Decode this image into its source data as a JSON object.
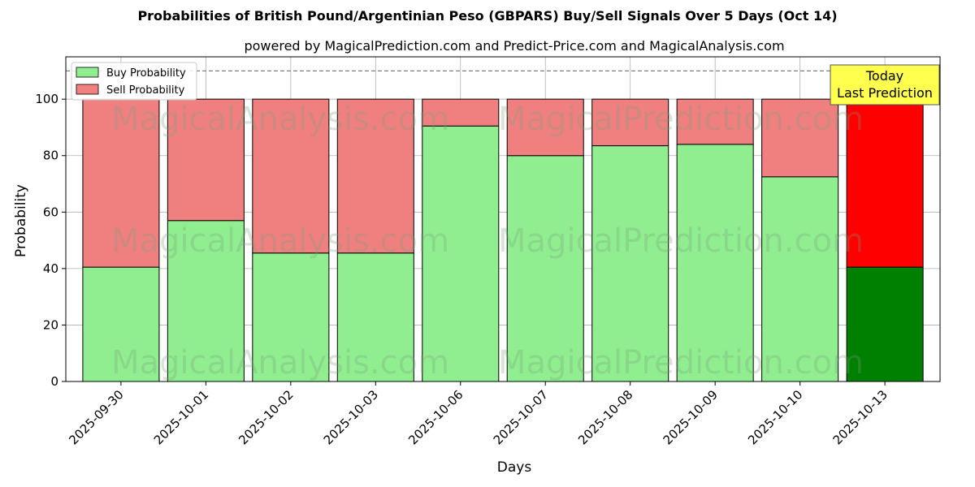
{
  "title": "Probabilities of British Pound/Argentinian Peso (GBPARS) Buy/Sell Signals Over 5 Days (Oct 14)",
  "subtitle": "powered by MagicalPrediction.com and Predict-Price.com and MagicalAnalysis.com",
  "watermarks": [
    "MagicalAnalysis.com",
    "MagicalPrediction.com"
  ],
  "annotation": {
    "line1": "Today",
    "line2": "Last Prediction"
  },
  "colors": {
    "buy": "#90ee90",
    "sell": "#f08080",
    "buy_today": "#008000",
    "sell_today": "#ff0000",
    "annotation_bg": "#ffff4d"
  },
  "chart_data": {
    "type": "bar",
    "stacked": true,
    "xlabel": "Days",
    "ylabel": "Probability",
    "ylim": [
      0,
      115
    ],
    "yticks": [
      0,
      20,
      40,
      60,
      80,
      100
    ],
    "reference_line": 110,
    "grid": true,
    "legend_position": "top-left",
    "categories": [
      "2025-09-30",
      "2025-10-01",
      "2025-10-02",
      "2025-10-03",
      "2025-10-06",
      "2025-10-07",
      "2025-10-08",
      "2025-10-09",
      "2025-10-10",
      "2025-10-13"
    ],
    "series": [
      {
        "name": "Buy Probability",
        "values": [
          40.5,
          57.0,
          45.5,
          45.5,
          90.5,
          80.0,
          83.5,
          84.0,
          72.5,
          40.5
        ]
      },
      {
        "name": "Sell Probability",
        "values": [
          59.5,
          43.0,
          54.5,
          54.5,
          9.5,
          20.0,
          16.5,
          16.0,
          27.5,
          59.5
        ]
      }
    ]
  }
}
